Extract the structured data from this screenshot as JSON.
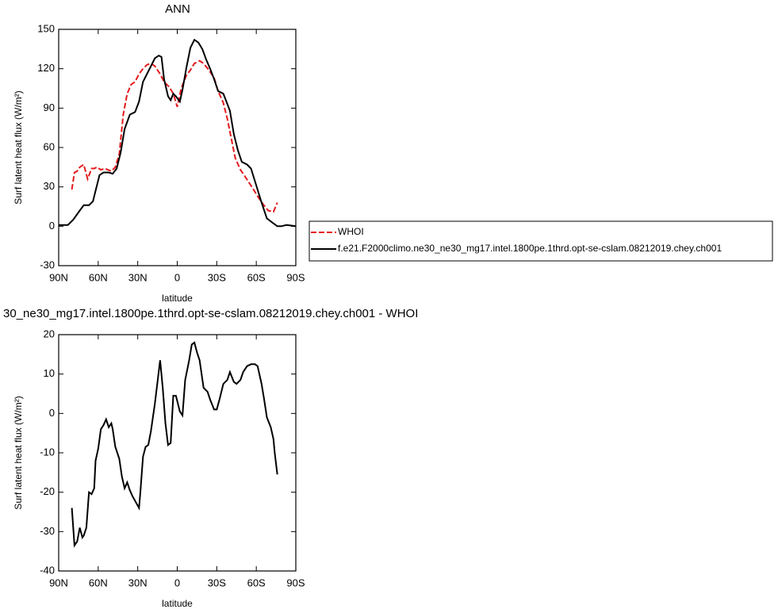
{
  "chart_data": [
    {
      "type": "line",
      "title": "ANN",
      "x_label": "latitude",
      "y_label": "Surf latent heat flux (W/m²)",
      "xlim": [
        90,
        -90
      ],
      "xticks": [
        {
          "value": 90,
          "label": "90N"
        },
        {
          "value": 60,
          "label": "60N"
        },
        {
          "value": 30,
          "label": "30N"
        },
        0,
        {
          "value": -30,
          "label": "30S"
        },
        {
          "value": -60,
          "label": "60S"
        },
        {
          "value": -90,
          "label": "90S"
        }
      ],
      "ylim": [
        -30,
        150
      ],
      "yticks": [
        -30,
        0,
        30,
        60,
        90,
        120,
        150
      ],
      "legend": "right",
      "series": [
        {
          "name": "WHOI",
          "color": "#e31a1c",
          "line_style": "dashed",
          "x": [
            80,
            78,
            76,
            74,
            71,
            68,
            65,
            63,
            61,
            58,
            55,
            50,
            47,
            44,
            41,
            38,
            35,
            32,
            29,
            26,
            23,
            20,
            17,
            13,
            10,
            6,
            3,
            0,
            -3,
            -7,
            -10,
            -13,
            -17,
            -20,
            -24,
            -28,
            -31,
            -35,
            -38,
            -41,
            -44,
            -48,
            -52,
            -56,
            -61,
            -65,
            -69,
            -73,
            -76
          ],
          "values": [
            28,
            41,
            42,
            45,
            47,
            36,
            44,
            44,
            45,
            43,
            44,
            42,
            45,
            55,
            85,
            101,
            108,
            110,
            116,
            120,
            123,
            124,
            122,
            116,
            110,
            106,
            101,
            91,
            105,
            115,
            119,
            124,
            126,
            124,
            119,
            113,
            103,
            94,
            82,
            67,
            52,
            43,
            37,
            31,
            23,
            17,
            12,
            11,
            18
          ]
        },
        {
          "name": "f.e21.F2000climo.ne30_ne30_mg17.intel.1800pe.1thrd.opt-se-cslam.08212019.chey.ch001",
          "color": "#000000",
          "line_style": "solid",
          "x": [
            90,
            83,
            79,
            74,
            71,
            67,
            64,
            62,
            59,
            56,
            52,
            49,
            46,
            43,
            40,
            36,
            32,
            29,
            26,
            23,
            20,
            17,
            14,
            12,
            10,
            7,
            5,
            3,
            1,
            -2,
            -4,
            -7,
            -10,
            -13,
            -16,
            -19,
            -22,
            -25,
            -28,
            -31,
            -35,
            -40,
            -43,
            -46,
            -49,
            -53,
            -56,
            -60,
            -64,
            -68,
            -72,
            -76,
            -79,
            -83,
            -90
          ],
          "values": [
            1,
            1,
            5,
            12,
            16,
            16,
            19,
            27,
            39,
            41,
            41,
            40,
            44,
            56,
            74,
            85,
            87,
            95,
            110,
            116,
            122,
            128,
            130,
            129,
            112,
            99,
            96,
            101,
            99,
            95,
            104,
            121,
            136,
            142,
            140,
            135,
            127,
            120,
            112,
            103,
            101,
            88,
            70,
            58,
            49,
            47,
            44,
            31,
            18,
            6,
            3,
            0,
            0,
            1,
            0
          ]
        }
      ]
    },
    {
      "type": "line",
      "title": "30_ne30_mg17.intel.1800pe.1thrd.opt-se-cslam.08212019.chey.ch001 - WHOI",
      "x_label": "latitude",
      "y_label": "Surf latent heat flux (W/m²)",
      "xlim": [
        90,
        -90
      ],
      "xticks": [
        {
          "value": 90,
          "label": "90N"
        },
        {
          "value": 60,
          "label": "60N"
        },
        {
          "value": 30,
          "label": "30N"
        },
        0,
        {
          "value": -30,
          "label": "30S"
        },
        {
          "value": -60,
          "label": "60S"
        },
        {
          "value": -90,
          "label": "90S"
        }
      ],
      "ylim": [
        -40,
        20
      ],
      "yticks": [
        -40,
        -30,
        -20,
        -10,
        0,
        10,
        20
      ],
      "series": [
        {
          "color": "#000000",
          "line_style": "solid",
          "x": [
            80,
            78,
            76,
            74,
            72,
            71,
            69,
            67,
            65,
            63,
            62,
            60,
            58,
            56,
            54,
            52,
            50,
            49,
            47,
            44,
            42,
            40,
            38,
            36,
            34,
            29,
            28,
            26,
            24,
            22,
            20,
            17,
            15,
            13,
            11,
            9,
            7,
            5,
            3,
            1,
            -2,
            -4,
            -6,
            -9,
            -11,
            -13,
            -15,
            -17,
            -20,
            -23,
            -25,
            -28,
            -30,
            -32,
            -35,
            -38,
            -40,
            -43,
            -45,
            -48,
            -50,
            -53,
            -56,
            -59,
            -61,
            -64,
            -66,
            -68,
            -71,
            -73,
            -74,
            -76
          ],
          "values": [
            -24,
            -33.5,
            -32.5,
            -29,
            -31.5,
            -31,
            -29,
            -20,
            -20.5,
            -19,
            -12,
            -9,
            -4,
            -3,
            -1.5,
            -3.5,
            -2.5,
            -4,
            -8.5,
            -11.5,
            -16,
            -19,
            -17.5,
            -19.5,
            -21,
            -24,
            -20,
            -11,
            -8.5,
            -8,
            -4.5,
            2.5,
            8,
            13.5,
            6.5,
            -2.5,
            -8,
            -7.5,
            4.5,
            4.5,
            0.5,
            -0.5,
            8.5,
            13.5,
            17.5,
            18,
            15.5,
            13.5,
            6.5,
            5.5,
            3.5,
            1,
            1,
            3.5,
            7.5,
            8.5,
            10.5,
            8,
            7.5,
            8.5,
            10.5,
            12,
            12.5,
            12.5,
            12,
            7.5,
            3.5,
            -1,
            -3.5,
            -6.5,
            -10,
            -15.5
          ]
        }
      ]
    }
  ]
}
